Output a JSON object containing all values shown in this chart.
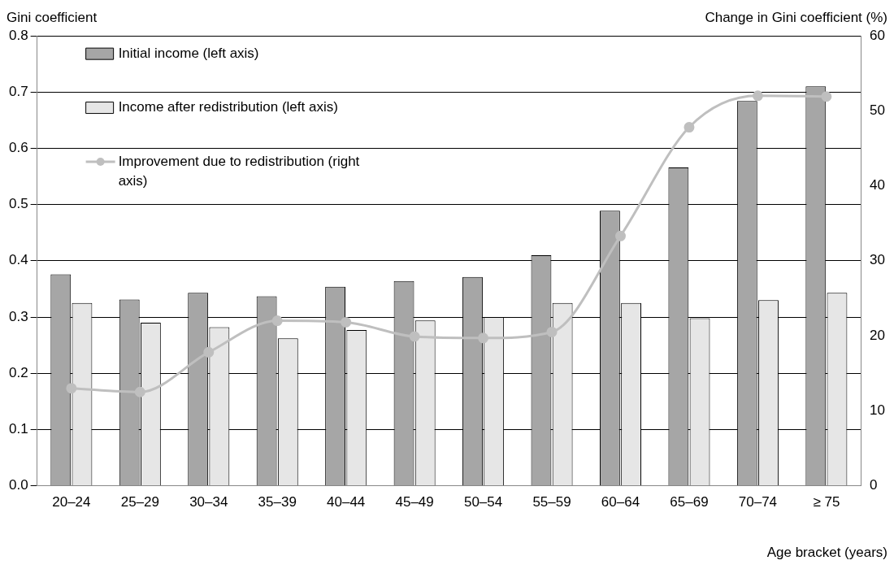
{
  "chart_data": {
    "type": "bar",
    "xlabel": "Age bracket (years)",
    "ylabel": "Gini coefficient",
    "y2label": "Change in Gini coefficient (%)",
    "categories": [
      "20–24",
      "25–29",
      "30–34",
      "35–39",
      "40–44",
      "45–49",
      "50–54",
      "55–59",
      "60–64",
      "65–69",
      "70–74",
      "≥ 75"
    ],
    "series": [
      {
        "name": "Initial income (left axis)",
        "color": "#a6a6a6",
        "values": [
          0.376,
          0.331,
          0.343,
          0.337,
          0.354,
          0.364,
          0.371,
          0.41,
          0.489,
          0.566,
          0.684,
          0.71
        ]
      },
      {
        "name": "Income after redistribution (left axis)",
        "color": "#e6e6e6",
        "values": [
          0.325,
          0.29,
          0.282,
          0.262,
          0.277,
          0.294,
          0.3,
          0.325,
          0.325,
          0.298,
          0.33,
          0.343
        ]
      },
      {
        "name": "Improvement due to redistribution (right axis)",
        "type": "line",
        "axis": "y2",
        "color": "#bfbfbf",
        "values": [
          13.0,
          12.5,
          17.8,
          22.0,
          21.8,
          19.9,
          19.7,
          20.5,
          33.3,
          47.8,
          52.0,
          51.9
        ]
      }
    ],
    "ylim": [
      0,
      0.8
    ],
    "yticks": [
      {
        "value": 0,
        "label": "0.0"
      },
      0.1,
      0.2,
      0.3,
      0.4,
      0.5,
      0.6,
      0.7,
      0.8
    ],
    "y2lim": [
      0,
      60
    ],
    "y2ticks": [
      0,
      10,
      20,
      30,
      40,
      50,
      60
    ],
    "grid": "y",
    "legend": "top left",
    "marker": "circle",
    "line_style": "solid"
  }
}
